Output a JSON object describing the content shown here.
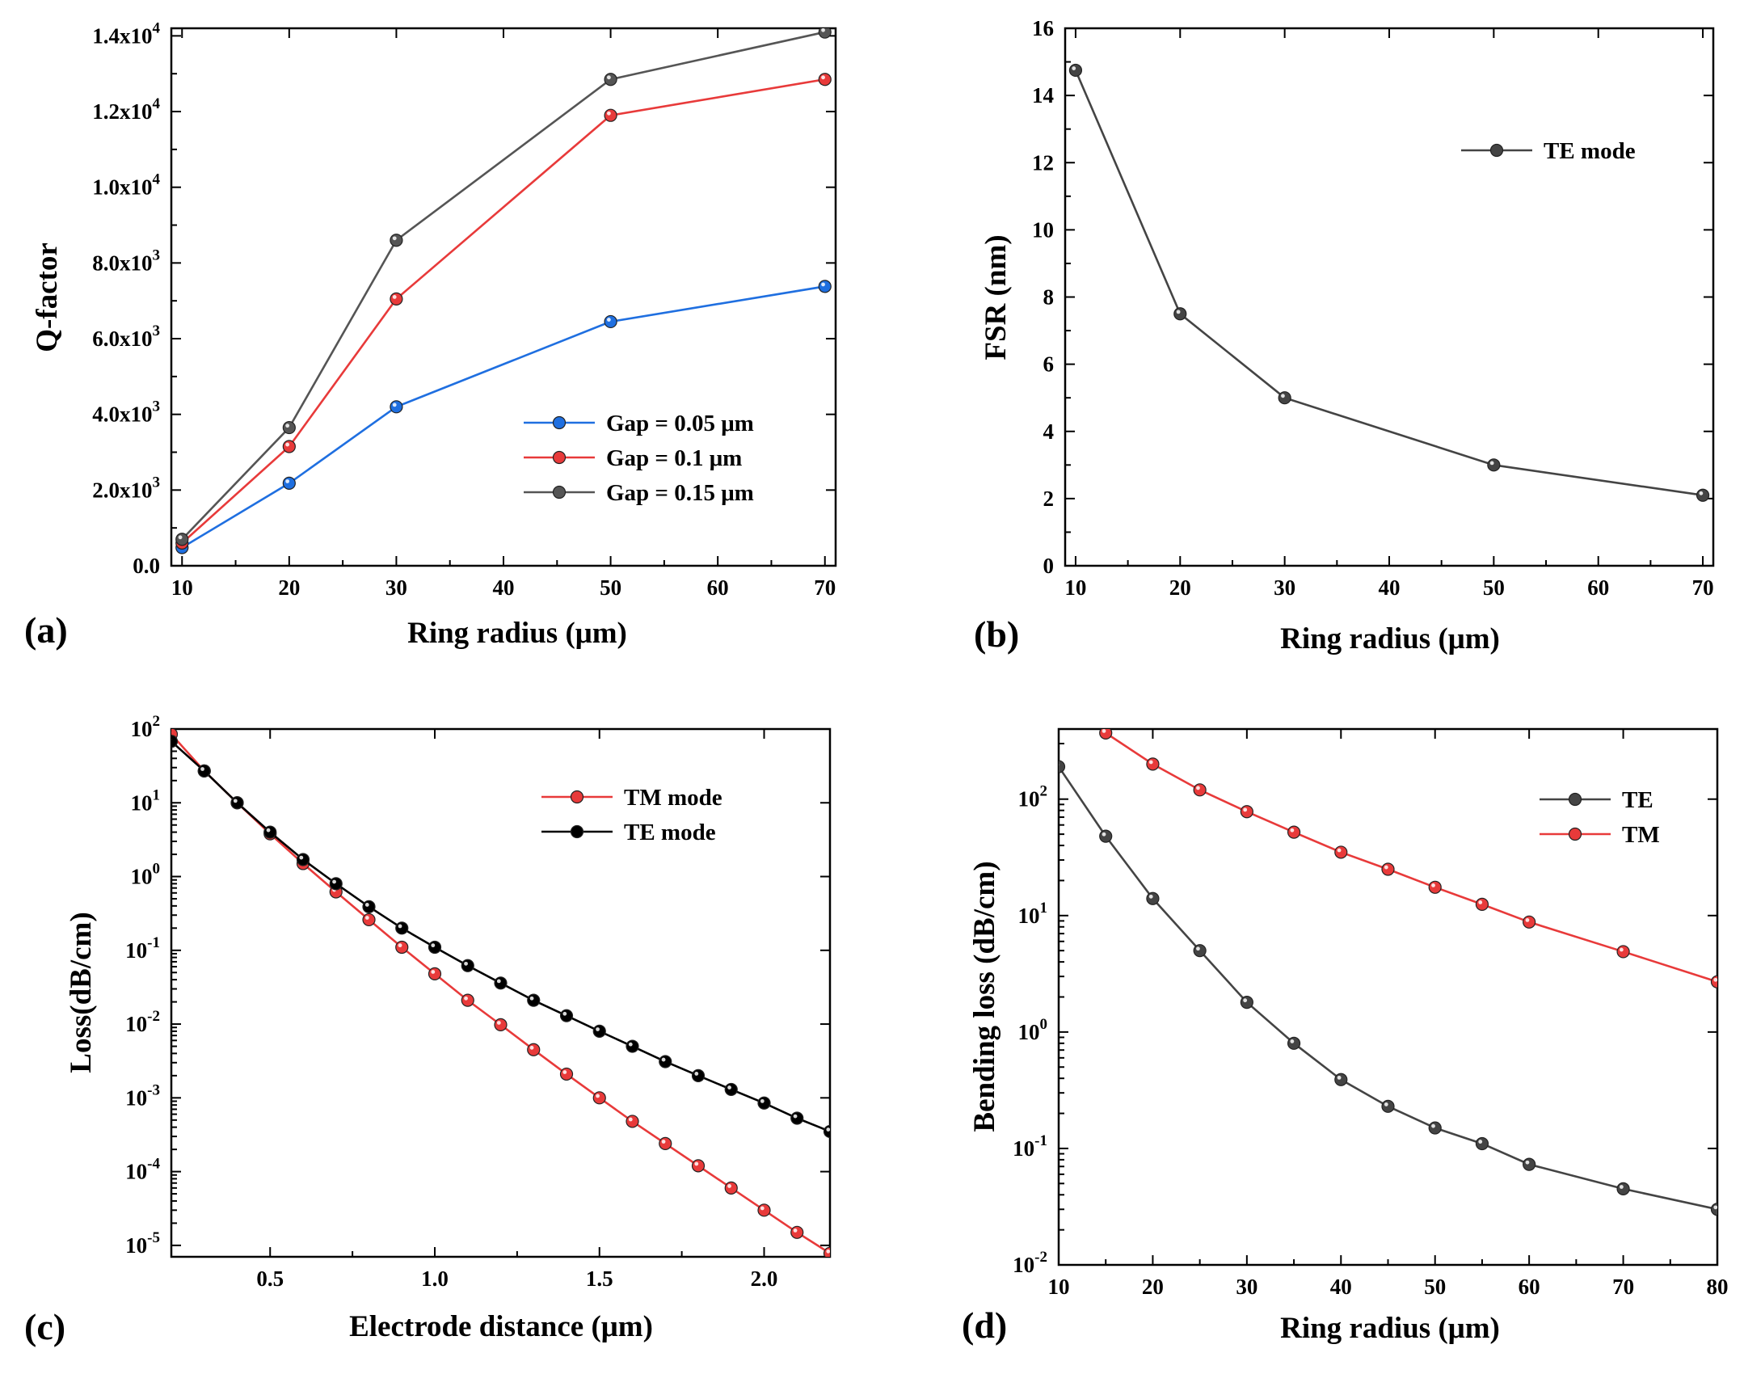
{
  "chart_data": [
    {
      "id": "a",
      "panel_label": "(a)",
      "type": "line",
      "xlabel": "Ring radius (μm)",
      "ylabel": "Q-factor",
      "xlim": [
        9,
        71
      ],
      "ylim": [
        0,
        14200
      ],
      "yscale": "linear",
      "xticks": [
        10,
        20,
        30,
        40,
        50,
        60,
        70
      ],
      "xtick_labels": [
        "10",
        "20",
        "30",
        "40",
        "50",
        "60",
        "70"
      ],
      "yticks": [
        0,
        2000,
        4000,
        6000,
        8000,
        10000,
        12000,
        14000
      ],
      "ytick_labels": [
        {
          "base": "0.0",
          "exp": ""
        },
        {
          "base": "2.0x10",
          "exp": "3"
        },
        {
          "base": "4.0x10",
          "exp": "3"
        },
        {
          "base": "6.0x10",
          "exp": "3"
        },
        {
          "base": "8.0x10",
          "exp": "3"
        },
        {
          "base": "1.0x10",
          "exp": "4"
        },
        {
          "base": "1.2x10",
          "exp": "4"
        },
        {
          "base": "1.4x10",
          "exp": "4"
        }
      ],
      "grid": false,
      "legend": "bottom-right",
      "series": [
        {
          "name": "Gap = 0.05 μm",
          "color": "#1f6fe0",
          "x": [
            10,
            20,
            30,
            50,
            70
          ],
          "y": [
            480,
            2180,
            4200,
            6450,
            7380
          ]
        },
        {
          "name": "Gap = 0.1 μm",
          "color": "#e83a3a",
          "x": [
            10,
            20,
            30,
            50,
            70
          ],
          "y": [
            600,
            3150,
            7050,
            11900,
            12850
          ]
        },
        {
          "name": "Gap = 0.15 μm",
          "color": "#555555",
          "x": [
            10,
            20,
            30,
            50,
            70
          ],
          "y": [
            700,
            3650,
            8600,
            12850,
            14100
          ]
        }
      ]
    },
    {
      "id": "b",
      "panel_label": "(b)",
      "type": "line",
      "xlabel": "Ring radius (μm)",
      "ylabel": "FSR (nm)",
      "xlim": [
        9,
        71
      ],
      "ylim": [
        0,
        16
      ],
      "yscale": "linear",
      "xticks": [
        10,
        20,
        30,
        40,
        50,
        60,
        70
      ],
      "xtick_labels": [
        "10",
        "20",
        "30",
        "40",
        "50",
        "60",
        "70"
      ],
      "yticks": [
        0,
        2,
        4,
        6,
        8,
        10,
        12,
        14,
        16
      ],
      "ytick_labels": [
        {
          "base": "0",
          "exp": ""
        },
        {
          "base": "2",
          "exp": ""
        },
        {
          "base": "4",
          "exp": ""
        },
        {
          "base": "6",
          "exp": ""
        },
        {
          "base": "8",
          "exp": ""
        },
        {
          "base": "10",
          "exp": ""
        },
        {
          "base": "12",
          "exp": ""
        },
        {
          "base": "14",
          "exp": ""
        },
        {
          "base": "16",
          "exp": ""
        }
      ],
      "grid": false,
      "legend": "top-right",
      "series": [
        {
          "name": "TE mode",
          "color": "#444444",
          "x": [
            10,
            20,
            30,
            50,
            70
          ],
          "y": [
            14.75,
            7.5,
            5.0,
            3.0,
            2.1
          ]
        }
      ]
    },
    {
      "id": "c",
      "panel_label": "(c)",
      "type": "line",
      "xlabel": "Electrode distance (μm)",
      "ylabel": "Loss(dB/cm)",
      "xlim": [
        0.2,
        2.2
      ],
      "ylim": [
        7e-06,
        100
      ],
      "yscale": "log",
      "xticks": [
        0.5,
        1.0,
        1.5,
        2.0
      ],
      "xtick_labels": [
        "0.5",
        "1.0",
        "1.5",
        "2.0"
      ],
      "yticks": [
        1e-05,
        0.0001,
        0.001,
        0.01,
        0.1,
        1,
        10,
        100
      ],
      "ytick_labels": [
        {
          "base": "10",
          "exp": "-5"
        },
        {
          "base": "10",
          "exp": "-4"
        },
        {
          "base": "10",
          "exp": "-3"
        },
        {
          "base": "10",
          "exp": "-2"
        },
        {
          "base": "10",
          "exp": "-1"
        },
        {
          "base": "10",
          "exp": "0"
        },
        {
          "base": "10",
          "exp": "1"
        },
        {
          "base": "10",
          "exp": "2"
        }
      ],
      "grid": false,
      "legend": "top-right",
      "series": [
        {
          "name": "TM mode",
          "color": "#e83a3a",
          "x": [
            0.2,
            0.3,
            0.4,
            0.5,
            0.6,
            0.7,
            0.8,
            0.9,
            1.0,
            1.1,
            1.2,
            1.3,
            1.4,
            1.5,
            1.6,
            1.7,
            1.8,
            1.9,
            2.0,
            2.1,
            2.2
          ],
          "y": [
            85,
            27,
            10,
            3.8,
            1.5,
            0.62,
            0.26,
            0.11,
            0.048,
            0.021,
            0.0098,
            0.0045,
            0.0021,
            0.001,
            0.00048,
            0.00024,
            0.00012,
            6e-05,
            3e-05,
            1.5e-05,
            7.8e-06
          ]
        },
        {
          "name": "TE mode",
          "color": "#000000",
          "x": [
            0.2,
            0.3,
            0.4,
            0.5,
            0.6,
            0.7,
            0.8,
            0.9,
            1.0,
            1.1,
            1.2,
            1.3,
            1.4,
            1.5,
            1.6,
            1.7,
            1.8,
            1.9,
            2.0,
            2.1,
            2.2
          ],
          "y": [
            68,
            27,
            10,
            4.0,
            1.7,
            0.8,
            0.39,
            0.2,
            0.11,
            0.062,
            0.036,
            0.021,
            0.013,
            0.008,
            0.005,
            0.0031,
            0.002,
            0.0013,
            0.00085,
            0.00053,
            0.00035
          ]
        }
      ]
    },
    {
      "id": "d",
      "panel_label": "(d)",
      "type": "line",
      "xlabel": "Ring radius (μm)",
      "ylabel": "Bending loss (dB/cm)",
      "xlim": [
        10,
        80
      ],
      "ylim": [
        0.01,
        400
      ],
      "yscale": "log",
      "xticks": [
        10,
        20,
        30,
        40,
        50,
        60,
        70,
        80
      ],
      "xtick_labels": [
        "10",
        "20",
        "30",
        "40",
        "50",
        "60",
        "70",
        "80"
      ],
      "yticks": [
        0.01,
        0.1,
        1,
        10,
        100
      ],
      "ytick_labels": [
        {
          "base": "10",
          "exp": "-2"
        },
        {
          "base": "10",
          "exp": "-1"
        },
        {
          "base": "10",
          "exp": "0"
        },
        {
          "base": "10",
          "exp": "1"
        },
        {
          "base": "10",
          "exp": "2"
        }
      ],
      "grid": false,
      "legend": "top-right",
      "series": [
        {
          "name": "TE",
          "color": "#444444",
          "x": [
            10,
            15,
            20,
            25,
            30,
            35,
            40,
            45,
            50,
            55,
            60,
            70,
            80
          ],
          "y": [
            190,
            48,
            14,
            5.0,
            1.8,
            0.8,
            0.39,
            0.23,
            0.15,
            0.11,
            0.073,
            0.045,
            0.03
          ]
        },
        {
          "name": "TM",
          "color": "#e83a3a",
          "x": [
            15,
            20,
            25,
            30,
            35,
            40,
            45,
            50,
            55,
            60,
            70,
            80
          ],
          "y": [
            370,
            200,
            120,
            78,
            52,
            35,
            25,
            17.5,
            12.5,
            8.8,
            4.9,
            2.7
          ]
        }
      ]
    }
  ]
}
